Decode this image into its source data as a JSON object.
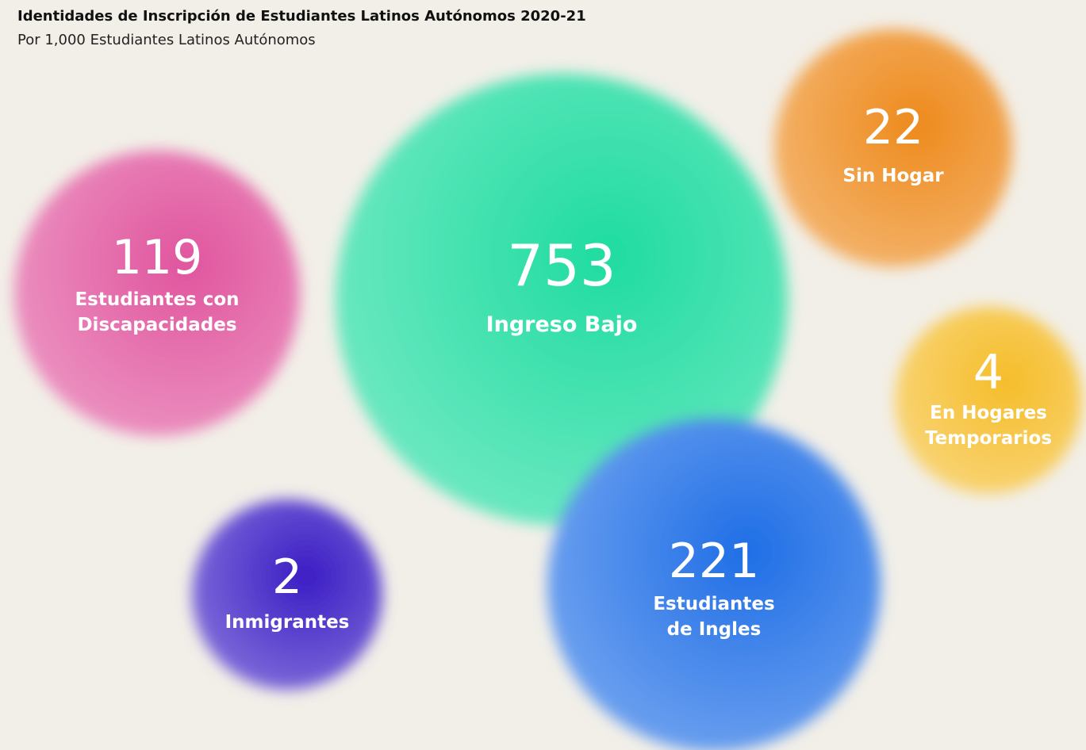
{
  "chart_data": {
    "type": "bubble",
    "title": "Identidades de Inscripción de Estudiantes Latinos Autónomos 2020-21",
    "subtitle": "Por 1,000 Estudiantes Latinos Autónomos",
    "bubbles": [
      {
        "label": "Ingreso Bajo",
        "value": 753,
        "color": "#1fdca0",
        "label_lines": [
          "Ingreso Bajo"
        ]
      },
      {
        "label": "Estudiantes con Discapacidades",
        "value": 119,
        "color": "#e0559e",
        "label_lines": [
          "Estudiantes con",
          "Discapacidades"
        ]
      },
      {
        "label": "Estudiantes de Ingles",
        "value": 221,
        "color": "#1f6ee6",
        "label_lines": [
          "Estudiantes",
          "de Ingles"
        ]
      },
      {
        "label": "Sin Hogar",
        "value": 22,
        "color": "#ee8a1c",
        "label_lines": [
          "Sin Hogar"
        ]
      },
      {
        "label": "En Hogares Temporarios",
        "value": 4,
        "color": "#f6bd2a",
        "label_lines": [
          "En Hogares",
          "Temporarios"
        ]
      },
      {
        "label": "Inmigrantes",
        "value": 2,
        "color": "#3a1cc4",
        "label_lines": [
          "Inmigrantes"
        ]
      }
    ]
  }
}
